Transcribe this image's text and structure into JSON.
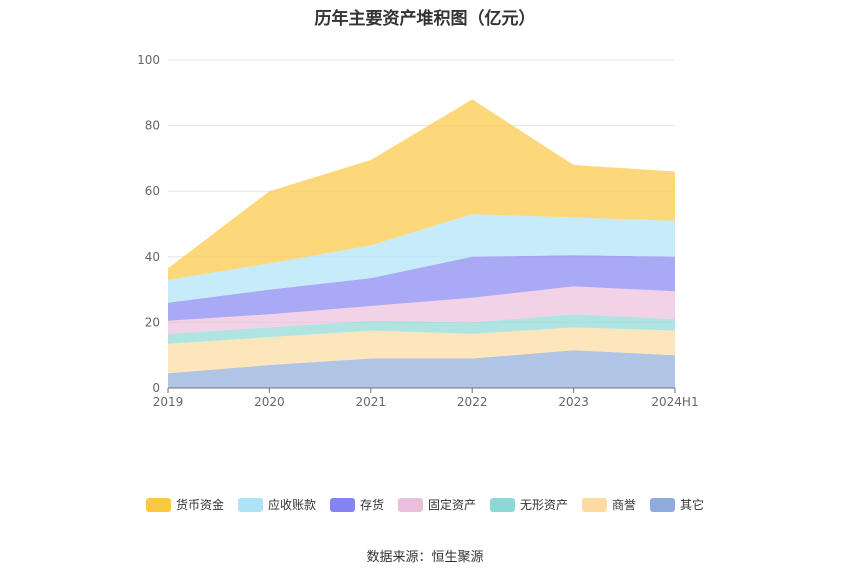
{
  "title": "历年主要资产堆积图（亿元）",
  "source": "数据来源：恒生聚源",
  "chart_data": {
    "type": "area",
    "stacked": true,
    "categories": [
      "2019",
      "2020",
      "2021",
      "2022",
      "2023",
      "2024H1"
    ],
    "ylim": [
      0,
      100
    ],
    "yticks": [
      0,
      20,
      40,
      60,
      80,
      100
    ],
    "grid": true,
    "legend_position": "bottom",
    "series": [
      {
        "name": "其它",
        "color": "#8fabdc",
        "values": [
          4.5,
          7.0,
          9.0,
          9.0,
          11.5,
          10.0
        ]
      },
      {
        "name": "商誉",
        "color": "#fddca0",
        "values": [
          9.0,
          8.5,
          8.5,
          7.5,
          7.0,
          7.5
        ]
      },
      {
        "name": "无形资产",
        "color": "#8dd8d6",
        "values": [
          3.0,
          3.0,
          3.0,
          3.5,
          4.0,
          3.5
        ]
      },
      {
        "name": "固定资产",
        "color": "#ebbfdc",
        "values": [
          4.0,
          4.0,
          4.5,
          7.5,
          8.5,
          8.5
        ]
      },
      {
        "name": "存货",
        "color": "#8484f2",
        "values": [
          5.5,
          7.5,
          8.5,
          12.5,
          9.5,
          10.5
        ]
      },
      {
        "name": "应收账款",
        "color": "#aee2f7",
        "values": [
          7.0,
          8.0,
          10.0,
          13.0,
          11.5,
          11.0
        ]
      },
      {
        "name": "货币资金",
        "color": "#fcc843",
        "values": [
          3.5,
          22.0,
          26.0,
          35.0,
          16.0,
          15.0
        ]
      }
    ],
    "legend_order": [
      "货币资金",
      "应收账款",
      "存货",
      "固定资产",
      "无形资产",
      "商誉",
      "其它"
    ]
  }
}
